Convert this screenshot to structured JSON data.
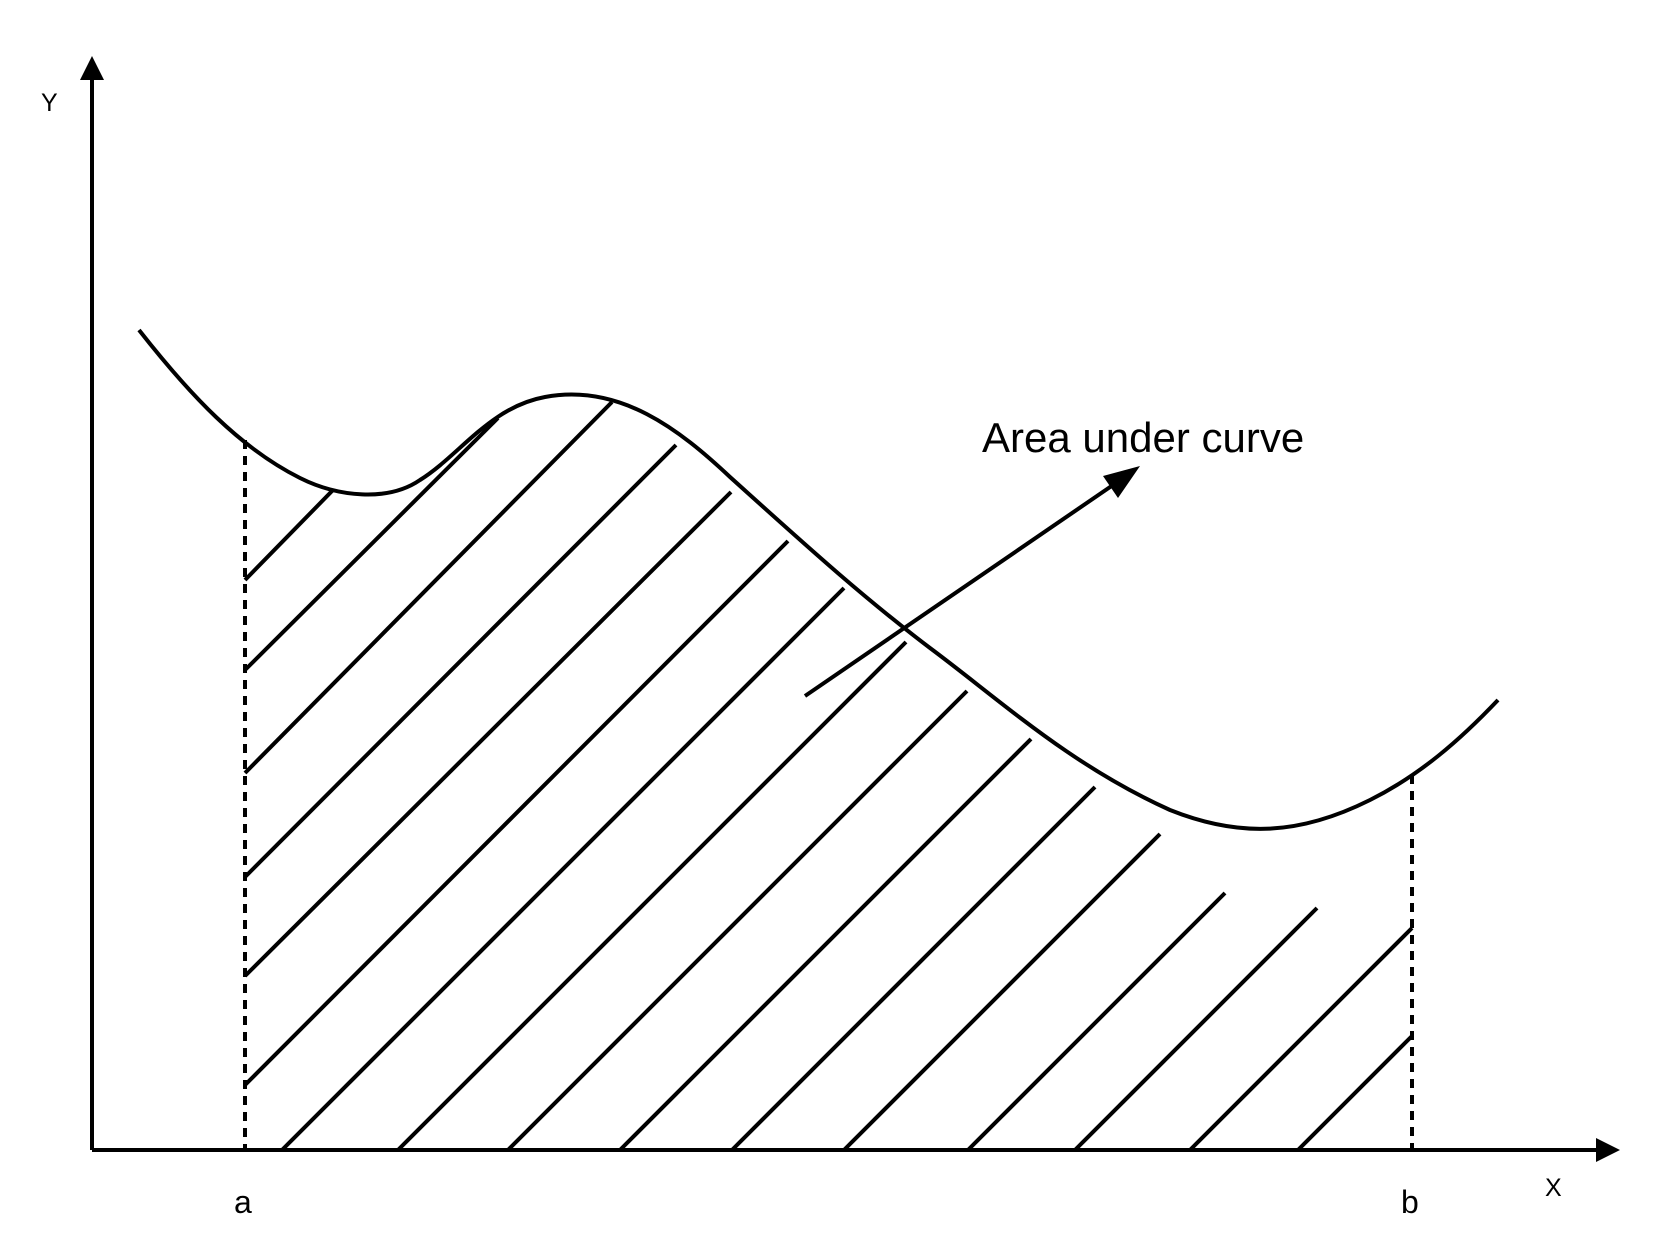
{
  "labels": {
    "y_axis": "Y",
    "x_axis": "X",
    "bound_a": "a",
    "bound_b": "b",
    "annotation": "Area under curve"
  },
  "colors": {
    "ink": "#000000",
    "background": "#ffffff"
  },
  "icons": {
    "x_axis_arrow": "arrowhead-right-icon",
    "y_axis_arrow": "arrowhead-up-icon",
    "annotation_arrow": "arrowhead-up-right-icon"
  }
}
